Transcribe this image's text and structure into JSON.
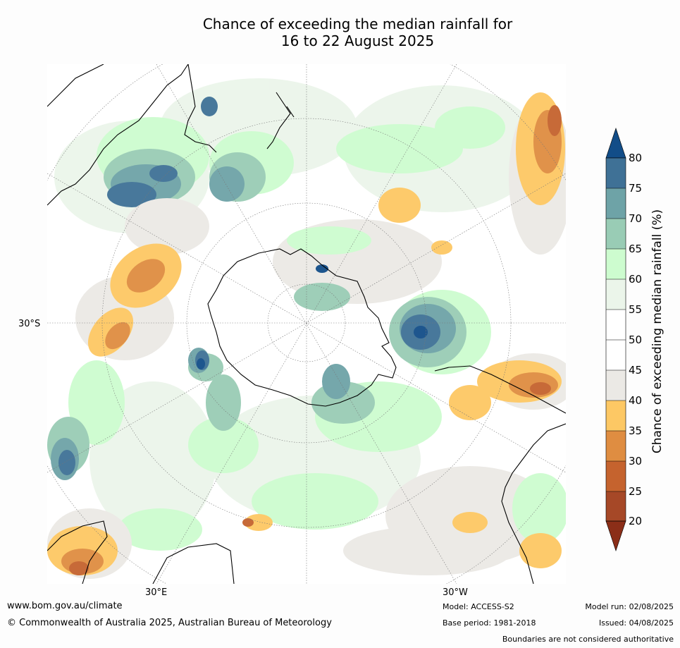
{
  "title": {
    "line1": "Chance of exceeding the median rainfall for",
    "line2": "16 to 22 August 2025"
  },
  "axis_labels": {
    "left": "30°S",
    "bottom_left": "30°E",
    "bottom_right": "30°W"
  },
  "legend": {
    "title": "Chance of exceeding median rainfall (%)",
    "ticks": [
      "80",
      "75",
      "70",
      "65",
      "60",
      "55",
      "50",
      "45",
      "40",
      "35",
      "30",
      "25",
      "20"
    ],
    "colors": {
      "above_80": "#124d88",
      "75_80": "#3f7196",
      "70_75": "#6ea3a7",
      "65_70": "#99ccb5",
      "60_65": "#cdfccf",
      "55_60": "#ebf5ea",
      "50_55": "#ffffff",
      "45_50": "#ffffff",
      "40_45": "#ebe9e5",
      "35_40": "#fdc864",
      "30_35": "#df8d41",
      "25_30": "#c5632e",
      "20_25": "#a64827",
      "below_20": "#8b2e18"
    }
  },
  "footer": {
    "website": "www.bom.gov.au/climate",
    "copyright": "© Commonwealth of Australia 2025, Australian Bureau of Meteorology",
    "model": "Model: ACCESS-S2",
    "base_period": "Base period: 1981-2018",
    "model_run": "Model run: 02/08/2025",
    "issued": "Issued: 04/08/2025",
    "disclaimer": "Boundaries are not considered authoritative"
  }
}
